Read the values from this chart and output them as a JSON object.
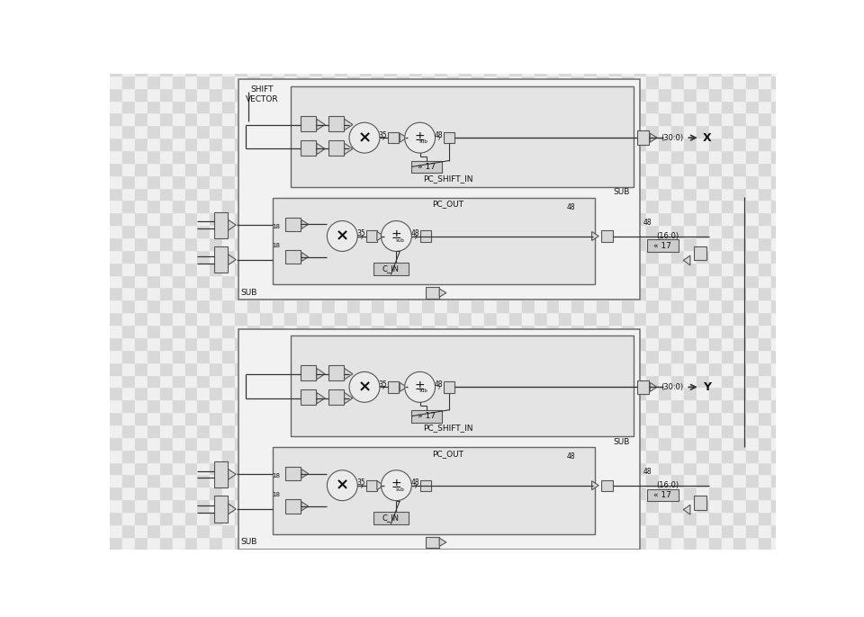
{
  "bg_checker1": "#d8d8d8",
  "bg_checker2": "#f0f0f0",
  "outer_fill": "#f2f2f2",
  "outer_edge": "#666666",
  "inner_fill": "#e4e4e4",
  "inner_edge": "#555555",
  "block_fill": "#d8d8d8",
  "block_edge": "#555555",
  "shift_fill": "#cccccc",
  "line_color": "#333333",
  "label_shift_vector": "SHIFT\nVECTOR",
  "label_x": "X",
  "label_y": "Y",
  "label_sub": "SUB",
  "label_pc_shift_in": "PC_SHIFT_IN",
  "label_pc_out": "PC_OUT",
  "label_c_in": "C_IN",
  "label_rshift_17": "» 17",
  "label_lshift_17": "« 17",
  "label_35": "35",
  "label_48": "48",
  "label_300": "(30:0)",
  "label_160": "(16:0)",
  "label_18": "18",
  "label_sub_small": "sub"
}
